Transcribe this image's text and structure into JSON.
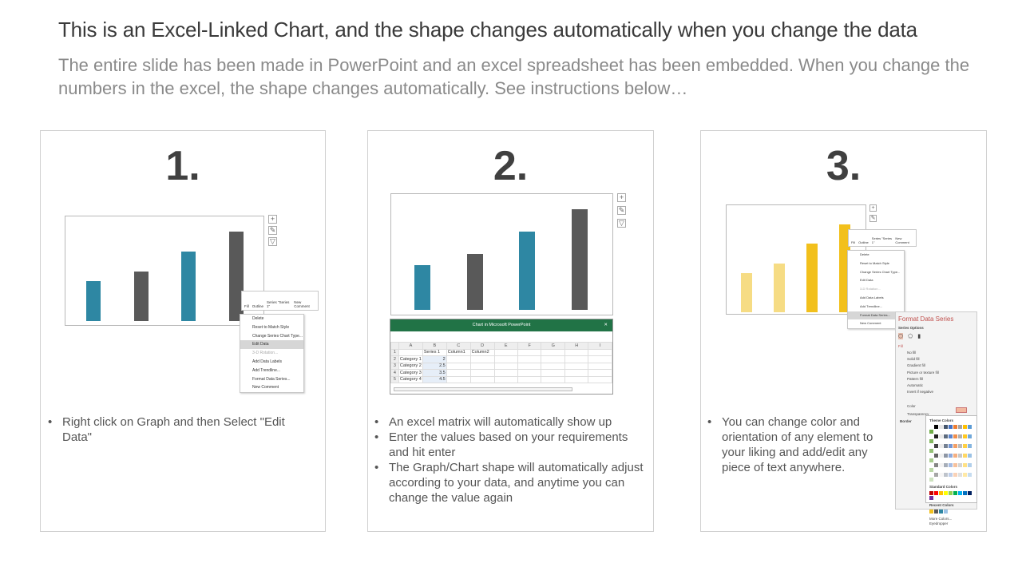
{
  "header": {
    "title": "This is an Excel-Linked Chart, and the shape changes automatically when you change the data",
    "subtitle": "The entire slide has been made in PowerPoint and an excel spreadsheet has been embedded. When you change the numbers in the excel, the shape changes automatically. See instructions below…"
  },
  "colors": {
    "teal": "#2e87a3",
    "dark": "#595959",
    "yellow_light": "#f6dc84",
    "yellow": "#f2c01c",
    "excel_green": "#217346",
    "accent_red": "#c0504d"
  },
  "mini_toolbar": {
    "fill": "Fill",
    "outline": "Outline",
    "series": "Series \"Series 1\"",
    "new_comment": "New Comment"
  },
  "context_menu": [
    "Delete",
    "Reset to Match Style",
    "Change Series Chart Type...",
    "Edit Data",
    "3-D Rotation...",
    "Add Data Labels",
    "Add Trendline...",
    "Format Data Series...",
    "New Comment"
  ],
  "panels": [
    {
      "number": "1.",
      "bars": [
        2,
        2.5,
        3.5,
        4.5
      ],
      "bullets": [
        "Right click on Graph and then Select \"Edit Data\""
      ]
    },
    {
      "number": "2.",
      "bars": [
        2,
        2.5,
        3.5,
        4.5
      ],
      "bullets": [
        "An excel matrix will automatically show up",
        "Enter the values based on your requirements and hit enter",
        "The Graph/Chart shape will automatically adjust according to your data, and anytime you can change the value again"
      ]
    },
    {
      "number": "3.",
      "bars": [
        2,
        2.5,
        3.5,
        4.5
      ],
      "bullets": [
        "You can change color and orientation of any element to your liking and add/edit any piece of text anywhere."
      ]
    }
  ],
  "excel": {
    "title": "Chart in Microsoft PowerPoint",
    "columns": [
      "",
      "A",
      "B",
      "C",
      "D",
      "E",
      "F",
      "G",
      "H",
      "I"
    ],
    "rows": [
      [
        "1",
        "",
        "Series 1",
        "Column1",
        "Column2",
        "",
        "",
        "",
        "",
        ""
      ],
      [
        "2",
        "Category 1",
        "2",
        "",
        "",
        "",
        "",
        "",
        "",
        ""
      ],
      [
        "3",
        "Category 2",
        "2.5",
        "",
        "",
        "",
        "",
        "",
        "",
        ""
      ],
      [
        "4",
        "Category 3",
        "3.5",
        "",
        "",
        "",
        "",
        "",
        "",
        ""
      ],
      [
        "5",
        "Category 4",
        "4.5",
        "",
        "",
        "",
        "",
        "",
        "",
        ""
      ]
    ]
  },
  "format_pane": {
    "title": "Format Data Series",
    "series_options": "Series Options",
    "fill": "Fill",
    "options": [
      "No fill",
      "Solid fill",
      "Gradient fill",
      "Picture or texture fill",
      "Pattern fill",
      "Automatic"
    ],
    "invert": "Invert if negative",
    "color": "Color",
    "transparency": "Transparency",
    "border": "Border",
    "theme_colors": "Theme Colors",
    "standard_colors": "Standard Colors",
    "recent_colors": "Recent Colors",
    "more_colors": "More Colors...",
    "eyedropper": "Eyedropper"
  }
}
